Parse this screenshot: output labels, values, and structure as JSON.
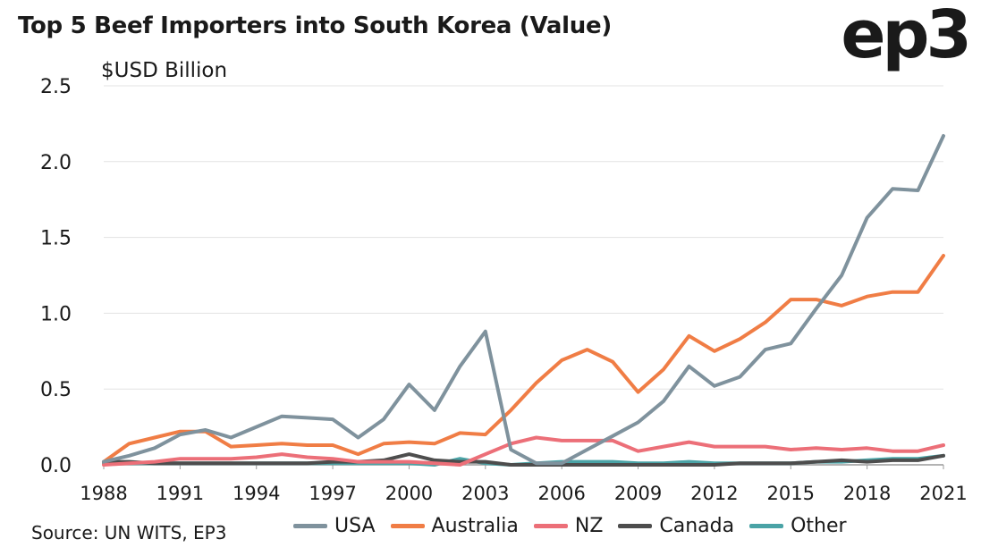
{
  "title": "Top 5 Beef Importers into South Korea (Value)",
  "logo": "ep3",
  "source": "Source: UN WITS, EP3",
  "colors": {
    "USA": "#7f929d",
    "Australia": "#f07d45",
    "NZ": "#ec6f78",
    "Canada": "#4d4d4d",
    "Other": "#4aa3a6",
    "grid": "#e3e3e3",
    "axis": "#9a9a9a"
  },
  "chart_data": {
    "type": "line",
    "title": "Top 5 Beef Importers into South Korea (Value)",
    "ylabel": "$USD Billion",
    "xlabel": "",
    "ylim": [
      0,
      2.5
    ],
    "yticks": [
      "0.0",
      "0.5",
      "1.0",
      "1.5",
      "2.0",
      "2.5"
    ],
    "xticks": [
      "1988",
      "1991",
      "1994",
      "1997",
      "2000",
      "2003",
      "2006",
      "2009",
      "2012",
      "2015",
      "2018",
      "2021"
    ],
    "grid": true,
    "legend_position": "bottom",
    "x": [
      1988,
      1989,
      1990,
      1991,
      1992,
      1993,
      1994,
      1995,
      1996,
      1997,
      1998,
      1999,
      2000,
      2001,
      2002,
      2003,
      2004,
      2005,
      2006,
      2007,
      2008,
      2009,
      2010,
      2011,
      2012,
      2013,
      2014,
      2015,
      2016,
      2017,
      2018,
      2019,
      2020,
      2021
    ],
    "series": [
      {
        "name": "USA",
        "values": [
          0.02,
          0.06,
          0.11,
          0.2,
          0.23,
          0.18,
          0.25,
          0.32,
          0.31,
          0.3,
          0.18,
          0.3,
          0.53,
          0.36,
          0.65,
          0.88,
          0.1,
          0.01,
          0.01,
          0.1,
          0.19,
          0.28,
          0.42,
          0.65,
          0.52,
          0.58,
          0.76,
          0.8,
          1.03,
          1.25,
          1.63,
          1.82,
          1.81,
          2.17
        ]
      },
      {
        "name": "Australia",
        "values": [
          0.02,
          0.14,
          0.18,
          0.22,
          0.22,
          0.12,
          0.13,
          0.14,
          0.13,
          0.13,
          0.07,
          0.14,
          0.15,
          0.14,
          0.21,
          0.2,
          0.36,
          0.54,
          0.69,
          0.76,
          0.68,
          0.48,
          0.63,
          0.85,
          0.75,
          0.83,
          0.94,
          1.09,
          1.09,
          1.05,
          1.11,
          1.14,
          1.14,
          1.38
        ]
      },
      {
        "name": "NZ",
        "values": [
          0.0,
          0.01,
          0.02,
          0.04,
          0.04,
          0.04,
          0.05,
          0.07,
          0.05,
          0.04,
          0.02,
          0.02,
          0.02,
          0.01,
          0.0,
          0.07,
          0.14,
          0.18,
          0.16,
          0.16,
          0.16,
          0.09,
          0.12,
          0.15,
          0.12,
          0.12,
          0.12,
          0.1,
          0.11,
          0.1,
          0.11,
          0.09,
          0.09,
          0.13
        ]
      },
      {
        "name": "Canada",
        "values": [
          0.02,
          0.02,
          0.01,
          0.01,
          0.01,
          0.01,
          0.01,
          0.01,
          0.01,
          0.02,
          0.02,
          0.03,
          0.07,
          0.03,
          0.02,
          0.02,
          0.0,
          0.0,
          0.0,
          0.0,
          0.0,
          0.0,
          0.0,
          0.0,
          0.0,
          0.01,
          0.01,
          0.01,
          0.02,
          0.03,
          0.02,
          0.03,
          0.03,
          0.06
        ]
      },
      {
        "name": "Other",
        "values": [
          0.01,
          0.01,
          0.01,
          0.01,
          0.01,
          0.01,
          0.01,
          0.01,
          0.01,
          0.01,
          0.01,
          0.01,
          0.01,
          0.0,
          0.04,
          0.01,
          0.0,
          0.01,
          0.02,
          0.02,
          0.02,
          0.01,
          0.01,
          0.02,
          0.01,
          0.01,
          0.01,
          0.01,
          0.02,
          0.02,
          0.03,
          0.04,
          0.04,
          0.06
        ]
      }
    ]
  }
}
